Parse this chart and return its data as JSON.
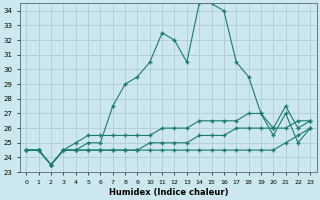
{
  "title": "",
  "xlabel": "Humidex (Indice chaleur)",
  "background_color": "#cce8ee",
  "grid_color": "#aac8d0",
  "line_color": "#1a7a6e",
  "xlim": [
    -0.5,
    23.5
  ],
  "ylim": [
    23,
    34.5
  ],
  "yticks": [
    23,
    24,
    25,
    26,
    27,
    28,
    29,
    30,
    31,
    32,
    33,
    34
  ],
  "xticks": [
    0,
    1,
    2,
    3,
    4,
    5,
    6,
    7,
    8,
    9,
    10,
    11,
    12,
    13,
    14,
    15,
    16,
    17,
    18,
    19,
    20,
    21,
    22,
    23
  ],
  "series": [
    [
      24.5,
      24.5,
      23.5,
      24.5,
      24.5,
      25.0,
      25.0,
      27.5,
      29.0,
      29.5,
      30.5,
      32.5,
      32.0,
      30.5,
      34.5,
      34.5,
      34.0,
      30.5,
      29.5,
      27.0,
      25.5,
      27.0,
      25.0,
      26.0
    ],
    [
      24.5,
      24.5,
      23.5,
      24.5,
      25.0,
      25.5,
      25.5,
      25.5,
      25.5,
      25.5,
      25.5,
      26.0,
      26.0,
      26.0,
      26.5,
      26.5,
      26.5,
      26.5,
      27.0,
      27.0,
      26.0,
      27.5,
      26.0,
      26.5
    ],
    [
      24.5,
      24.5,
      23.5,
      24.5,
      24.5,
      24.5,
      24.5,
      24.5,
      24.5,
      24.5,
      24.5,
      24.5,
      24.5,
      24.5,
      24.5,
      24.5,
      24.5,
      24.5,
      24.5,
      24.5,
      24.5,
      25.0,
      25.5,
      26.0
    ],
    [
      24.5,
      24.5,
      23.5,
      24.5,
      24.5,
      24.5,
      24.5,
      24.5,
      24.5,
      24.5,
      25.0,
      25.0,
      25.0,
      25.0,
      25.5,
      25.5,
      25.5,
      26.0,
      26.0,
      26.0,
      26.0,
      26.0,
      26.5,
      26.5
    ]
  ]
}
